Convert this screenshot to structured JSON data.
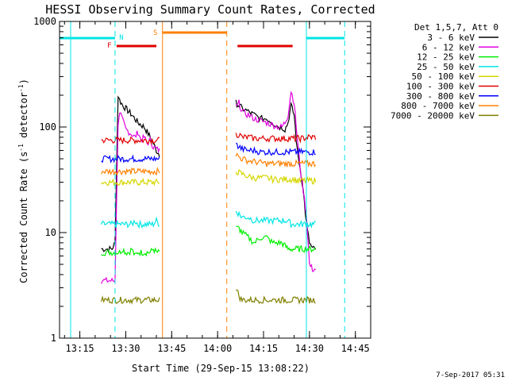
{
  "chart_data": {
    "type": "line",
    "title": "HESSI Observing Summary Count Rates, Corrected",
    "xlabel": "Start Time (29-Sep-15 13:08:22)",
    "ylabel_main": "Corrected Count Rate (s",
    "ylabel_sup1": "-1",
    "ylabel_mid": " detector",
    "ylabel_sup2": "-1",
    "ylabel_end": ")",
    "footer": "7-Sep-2017 05:31",
    "x_scale": "time",
    "xlim": [
      "13:08:22",
      "14:50:00"
    ],
    "x_ticks": [
      "13:15",
      "13:30",
      "13:45",
      "14:00",
      "14:15",
      "14:30",
      "14:45"
    ],
    "y_scale": "log",
    "ylim": [
      1,
      1000
    ],
    "y_ticks": [
      "1",
      "10",
      "100",
      "1000"
    ],
    "legend": {
      "position": "right",
      "header": "Det 1,5,7, Att 0",
      "entries": [
        {
          "label": "3 - 6 keV",
          "color": "#000000"
        },
        {
          "label": "6 - 12 keV",
          "color": "#e000e0"
        },
        {
          "label": "12 - 25 keV",
          "color": "#00ee00"
        },
        {
          "label": "25 - 50 keV",
          "color": "#00e5e5"
        },
        {
          "label": "50 - 100 keV",
          "color": "#d6d600"
        },
        {
          "label": "100 - 300 keV",
          "color": "#e00000"
        },
        {
          "label": "300 - 800 keV",
          "color": "#0000ff"
        },
        {
          "label": "800 - 7000 keV",
          "color": "#ff8000"
        },
        {
          "label": "7000 - 20000 keV",
          "color": "#7f7f00"
        }
      ]
    },
    "flag_labels": {
      "night": {
        "text": "N",
        "color": "#00e5e5"
      },
      "flare": {
        "text": "F",
        "color": "#e00000"
      },
      "saa": {
        "text": "S",
        "color": "#ff8000"
      }
    },
    "intervals": {
      "night": [
        [
          "13:08:22",
          "13:26:30"
        ],
        [
          "14:29:00",
          "14:41:30"
        ]
      ],
      "flare": [
        [
          "13:27:00",
          "13:40:00"
        ],
        [
          "14:06:30",
          "14:24:30"
        ]
      ],
      "saa": [
        [
          "13:42:00",
          "14:03:00"
        ]
      ]
    },
    "markers": [
      {
        "time": "13:12:00",
        "color": "#00e5e5",
        "style": "solid"
      },
      {
        "time": "13:26:30",
        "color": "#00e5e5",
        "style": "dashed"
      },
      {
        "time": "13:42:00",
        "color": "#ff8000",
        "style": "solid"
      },
      {
        "time": "14:03:00",
        "color": "#ff8000",
        "style": "dashed"
      },
      {
        "time": "14:29:00",
        "color": "#00e5e5",
        "style": "solid"
      },
      {
        "time": "14:41:30",
        "color": "#00e5e5",
        "style": "dashed"
      }
    ],
    "segments": [
      {
        "times": [
          "13:22:00",
          "13:24:00",
          "13:25:30",
          "13:26:30",
          "13:27:30",
          "13:28:00",
          "13:29:00",
          "13:30:00",
          "13:31:00",
          "13:32:00",
          "13:33:00",
          "13:34:00",
          "13:35:00",
          "13:36:00",
          "13:37:00",
          "13:38:00",
          "13:39:00",
          "13:40:00",
          "13:41:00"
        ],
        "series": [
          {
            "name": "3 - 6 keV",
            "values": [
              7,
              7,
              7,
              8,
              200,
              180,
              160,
              150,
              140,
              130,
              120,
              110,
              105,
              100,
              90,
              80,
              70,
              60,
              55
            ]
          },
          {
            "name": "6 - 12 keV",
            "values": [
              3.5,
              3.5,
              3.5,
              3.5,
              110,
              140,
              115,
              95,
              90,
              85,
              80,
              90,
              75,
              80,
              70,
              75,
              65,
              62,
              60
            ]
          },
          {
            "name": "12 - 25 keV",
            "values": [
              6.5,
              6.5,
              6.5,
              6.5,
              6.5,
              6.5,
              7,
              6.5,
              6.5,
              7,
              6,
              6.5,
              6.5,
              6.5,
              6.5,
              6.5,
              7,
              6.5,
              6.5
            ]
          },
          {
            "name": "25 - 50 keV",
            "values": [
              12,
              12,
              12,
              12,
              12,
              12,
              12,
              12,
              12,
              12,
              13,
              12,
              12,
              12,
              12,
              12,
              12,
              13,
              12
            ]
          },
          {
            "name": "50 - 100 keV",
            "values": [
              30,
              30,
              30,
              30,
              30,
              30,
              30,
              30,
              30,
              30,
              30,
              30,
              30,
              30,
              30,
              30,
              30,
              30,
              30
            ]
          },
          {
            "name": "100 - 300 keV",
            "values": [
              75,
              75,
              75,
              75,
              75,
              75,
              75,
              75,
              75,
              75,
              75,
              75,
              75,
              75,
              75,
              75,
              75,
              75,
              75
            ]
          },
          {
            "name": "300 - 800 keV",
            "values": [
              50,
              50,
              50,
              50,
              50,
              50,
              50,
              50,
              50,
              50,
              50,
              50,
              50,
              50,
              50,
              50,
              50,
              50,
              50
            ]
          },
          {
            "name": "800 - 7000 keV",
            "values": [
              38,
              38,
              38,
              38,
              38,
              38,
              38,
              38,
              38,
              38,
              38,
              38,
              38,
              38,
              38,
              38,
              38,
              38,
              38
            ]
          },
          {
            "name": "7000 - 20000 keV",
            "values": [
              2.3,
              2.3,
              2.3,
              2.3,
              2.3,
              2.3,
              2.3,
              2.3,
              2.3,
              2.3,
              2.3,
              2.3,
              2.3,
              2.3,
              2.3,
              2.3,
              2.3,
              2.3,
              2.3
            ]
          }
        ]
      },
      {
        "times": [
          "14:06:00",
          "14:07:00",
          "14:08:00",
          "14:10:00",
          "14:12:00",
          "14:14:00",
          "14:16:00",
          "14:18:00",
          "14:20:00",
          "14:21:00",
          "14:22:00",
          "14:23:00",
          "14:24:00",
          "14:25:00",
          "14:26:00",
          "14:27:00",
          "14:28:00",
          "14:29:00",
          "14:30:00",
          "14:31:00",
          "14:32:00"
        ],
        "series": [
          {
            "name": "3 - 6 keV",
            "values": [
              170,
              160,
              150,
              140,
              130,
              120,
              120,
              110,
              100,
              100,
              95,
              110,
              160,
              130,
              60,
              40,
              25,
              12,
              8,
              7,
              7
            ]
          },
          {
            "name": "6 - 12 keV",
            "values": [
              150,
              170,
              140,
              130,
              120,
              115,
              110,
              105,
              100,
              100,
              110,
              130,
              220,
              170,
              80,
              40,
              25,
              15,
              5,
              4.5,
              4.5
            ]
          },
          {
            "name": "12 - 25 keV",
            "values": [
              11,
              11,
              10,
              9,
              8,
              9,
              9,
              8,
              8,
              8,
              7.5,
              7,
              7,
              7,
              7,
              7,
              7,
              7,
              7,
              7,
              7
            ]
          },
          {
            "name": "25 - 50 keV",
            "values": [
              16,
              15,
              14,
              14,
              13,
              13,
              13,
              13,
              13,
              13,
              13,
              13,
              12,
              12,
              12,
              12,
              12,
              12,
              12,
              12,
              12
            ]
          },
          {
            "name": "50 - 100 keV",
            "values": [
              38,
              37,
              36,
              34,
              33,
              33,
              33,
              32,
              32,
              32,
              32,
              32,
              32,
              32,
              31,
              31,
              31,
              31,
              31,
              31,
              31
            ]
          },
          {
            "name": "100 - 300 keV",
            "values": [
              85,
              85,
              80,
              80,
              78,
              78,
              78,
              78,
              78,
              78,
              78,
              78,
              78,
              78,
              78,
              78,
              78,
              80,
              80,
              80,
              80
            ]
          },
          {
            "name": "300 - 800 keV",
            "values": [
              68,
              65,
              62,
              60,
              60,
              58,
              58,
              58,
              58,
              58,
              58,
              58,
              58,
              58,
              58,
              58,
              58,
              58,
              58,
              58,
              58
            ]
          },
          {
            "name": "800 - 7000 keV",
            "values": [
              55,
              52,
              50,
              48,
              47,
              46,
              45,
              45,
              45,
              45,
              45,
              45,
              45,
              45,
              45,
              45,
              45,
              45,
              45,
              45,
              45
            ]
          },
          {
            "name": "7000 - 20000 keV",
            "values": [
              3,
              2.5,
              2.3,
              2.3,
              2.3,
              2.3,
              2.3,
              2.3,
              2.3,
              2.3,
              2.3,
              2.3,
              2.3,
              2.3,
              2.3,
              2.3,
              2.3,
              2.3,
              2.3,
              2.3,
              2.3
            ]
          }
        ]
      }
    ]
  }
}
